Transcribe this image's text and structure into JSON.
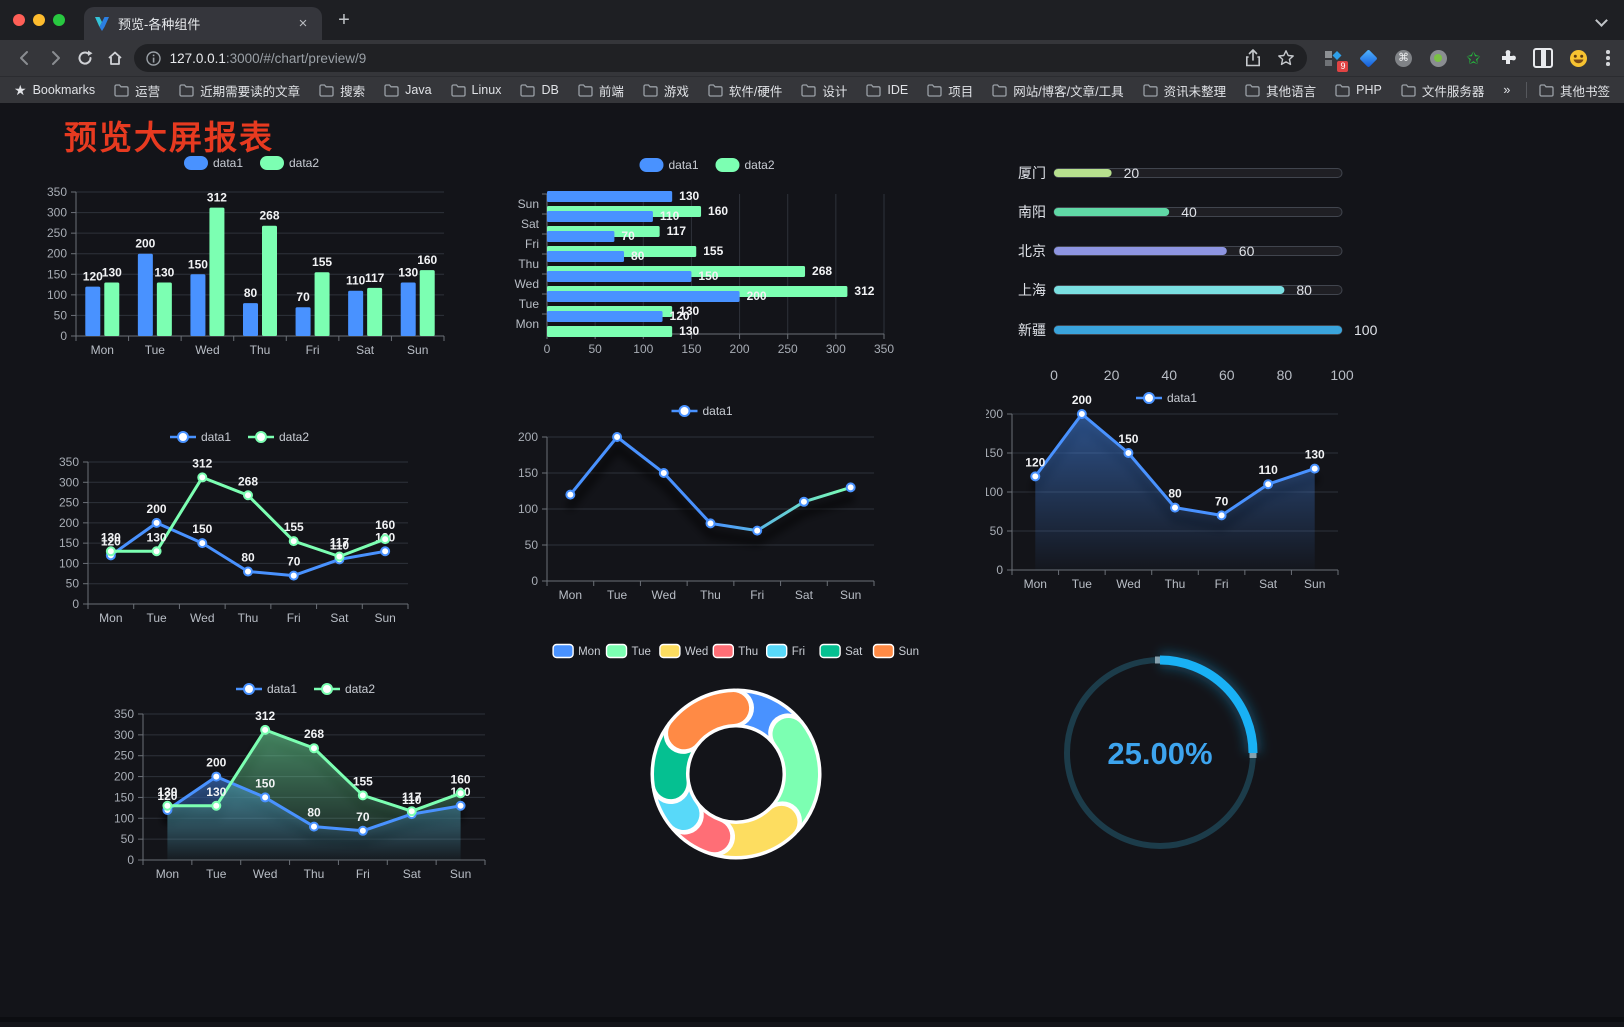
{
  "browser": {
    "tab_title": "预览-各种组件",
    "tab_close": "×",
    "new_tab_label": "+",
    "url_host": "127.0.0.1",
    "url_rest": ":3000/#/chart/preview/9",
    "bookmarks_label": "Bookmarks",
    "bookmarks": [
      "运营",
      "近期需要读的文章",
      "搜索",
      "Java",
      "Linux",
      "DB",
      "前端",
      "游戏",
      "软件/硬件",
      "设计",
      "IDE",
      "项目",
      "网站/博客/文章/工具",
      "资讯未整理",
      "其他语言",
      "PHP",
      "文件服务器"
    ],
    "bookmarks_overflow": "»",
    "other_bookmarks_label": "其他书签",
    "extension_badge": "9",
    "window_dot_colors": [
      "#ff5f57",
      "#febc2e",
      "#28c840"
    ]
  },
  "page": {
    "title": "预览大屏报表",
    "title_color": "#e73a20",
    "background": "#131419"
  },
  "chart_data": [
    {
      "id": "bar-grouped",
      "type": "bar",
      "legend_position": "top",
      "grid": true,
      "categories": [
        "Mon",
        "Tue",
        "Wed",
        "Thu",
        "Fri",
        "Sat",
        "Sun"
      ],
      "series": [
        {
          "name": "data1",
          "color": "#4992ff",
          "values": [
            120,
            200,
            150,
            80,
            70,
            110,
            130
          ]
        },
        {
          "name": "data2",
          "color": "#7cffb2",
          "values": [
            130,
            130,
            312,
            268,
            155,
            117,
            160
          ]
        }
      ],
      "ylim": [
        0,
        350
      ],
      "ytick_step": 50
    },
    {
      "id": "bar-horizontal",
      "type": "bar-horizontal",
      "legend_position": "top",
      "grid": true,
      "categories": [
        "Mon",
        "Tue",
        "Wed",
        "Thu",
        "Fri",
        "Sat",
        "Sun"
      ],
      "series": [
        {
          "name": "data1",
          "color": "#4992ff",
          "values": [
            120,
            200,
            150,
            80,
            70,
            110,
            130
          ]
        },
        {
          "name": "data2",
          "color": "#7cffb2",
          "values": [
            130,
            130,
            312,
            268,
            155,
            117,
            160
          ]
        }
      ],
      "xlim": [
        0,
        350
      ],
      "xtick_step": 50
    },
    {
      "id": "progress-bars",
      "type": "progress",
      "max": 100,
      "items": [
        {
          "label": "厦门",
          "value": 20,
          "color": "#b7e08e"
        },
        {
          "label": "南阳",
          "value": 40,
          "color": "#60d8a6"
        },
        {
          "label": "北京",
          "value": 60,
          "color": "#8e95e1"
        },
        {
          "label": "上海",
          "value": 80,
          "color": "#7adfe1"
        },
        {
          "label": "新疆",
          "value": 100,
          "color": "#3aa4dc"
        }
      ],
      "axis_ticks": [
        0,
        20,
        40,
        60,
        80,
        100
      ]
    },
    {
      "id": "line-two",
      "type": "line",
      "legend_position": "top",
      "grid": true,
      "categories": [
        "Mon",
        "Tue",
        "Wed",
        "Thu",
        "Fri",
        "Sat",
        "Sun"
      ],
      "series": [
        {
          "name": "data1",
          "color": "#4992ff",
          "values": [
            120,
            200,
            150,
            80,
            70,
            110,
            130
          ]
        },
        {
          "name": "data2",
          "color": "#7cffb2",
          "values": [
            130,
            130,
            312,
            268,
            155,
            117,
            160
          ]
        }
      ],
      "ylim": [
        0,
        350
      ],
      "ytick_step": 50,
      "labels": true,
      "markers": true,
      "shadow": false
    },
    {
      "id": "line-gradient",
      "type": "line",
      "legend_position": "top",
      "grid": true,
      "categories": [
        "Mon",
        "Tue",
        "Wed",
        "Thu",
        "Fri",
        "Sat",
        "Sun"
      ],
      "series": [
        {
          "name": "data1",
          "color": "#4992ff",
          "gradient": [
            "#4992ff",
            "#4992ff",
            "#7cffb2"
          ],
          "values": [
            120,
            200,
            150,
            80,
            70,
            110,
            130
          ]
        }
      ],
      "ylim": [
        0,
        200
      ],
      "ytick_step": 50,
      "labels": false,
      "markers": true,
      "shadow": true
    },
    {
      "id": "line-area",
      "type": "line",
      "legend_position": "top",
      "grid": true,
      "categories": [
        "Mon",
        "Tue",
        "Wed",
        "Thu",
        "Fri",
        "Sat",
        "Sun"
      ],
      "series": [
        {
          "name": "data1",
          "color": "#4992ff",
          "area": true,
          "values": [
            120,
            200,
            150,
            80,
            70,
            110,
            130
          ]
        }
      ],
      "ylim": [
        0,
        200
      ],
      "ytick_step": 50,
      "labels": true,
      "markers": true,
      "shadow": true
    },
    {
      "id": "line-area-two",
      "type": "line",
      "legend_position": "top",
      "grid": true,
      "categories": [
        "Mon",
        "Tue",
        "Wed",
        "Thu",
        "Fri",
        "Sat",
        "Sun"
      ],
      "series": [
        {
          "name": "data1",
          "color": "#4992ff",
          "area": true,
          "values": [
            120,
            200,
            150,
            80,
            70,
            110,
            130
          ]
        },
        {
          "name": "data2",
          "color": "#7cffb2",
          "area": true,
          "values": [
            130,
            130,
            312,
            268,
            155,
            117,
            160
          ]
        }
      ],
      "ylim": [
        0,
        350
      ],
      "ytick_step": 50,
      "labels": true,
      "markers": true,
      "shadow": true
    },
    {
      "id": "donut",
      "type": "pie",
      "legend_position": "top",
      "inner_radius_ratio": 0.61,
      "categories": [
        "Mon",
        "Tue",
        "Wed",
        "Thu",
        "Fri",
        "Sat",
        "Sun"
      ],
      "values": [
        120,
        200,
        150,
        80,
        70,
        110,
        130
      ],
      "colors": [
        "#4992ff",
        "#7cffb2",
        "#fddd60",
        "#ff6e76",
        "#58d9f9",
        "#05c091",
        "#ff8a45"
      ]
    },
    {
      "id": "gauge",
      "type": "gauge",
      "value": 25,
      "max": 100,
      "label": "25.00%",
      "color": "#19b1f5",
      "track_color": "#1c3c4a",
      "text_color": "#3da4ee"
    }
  ]
}
